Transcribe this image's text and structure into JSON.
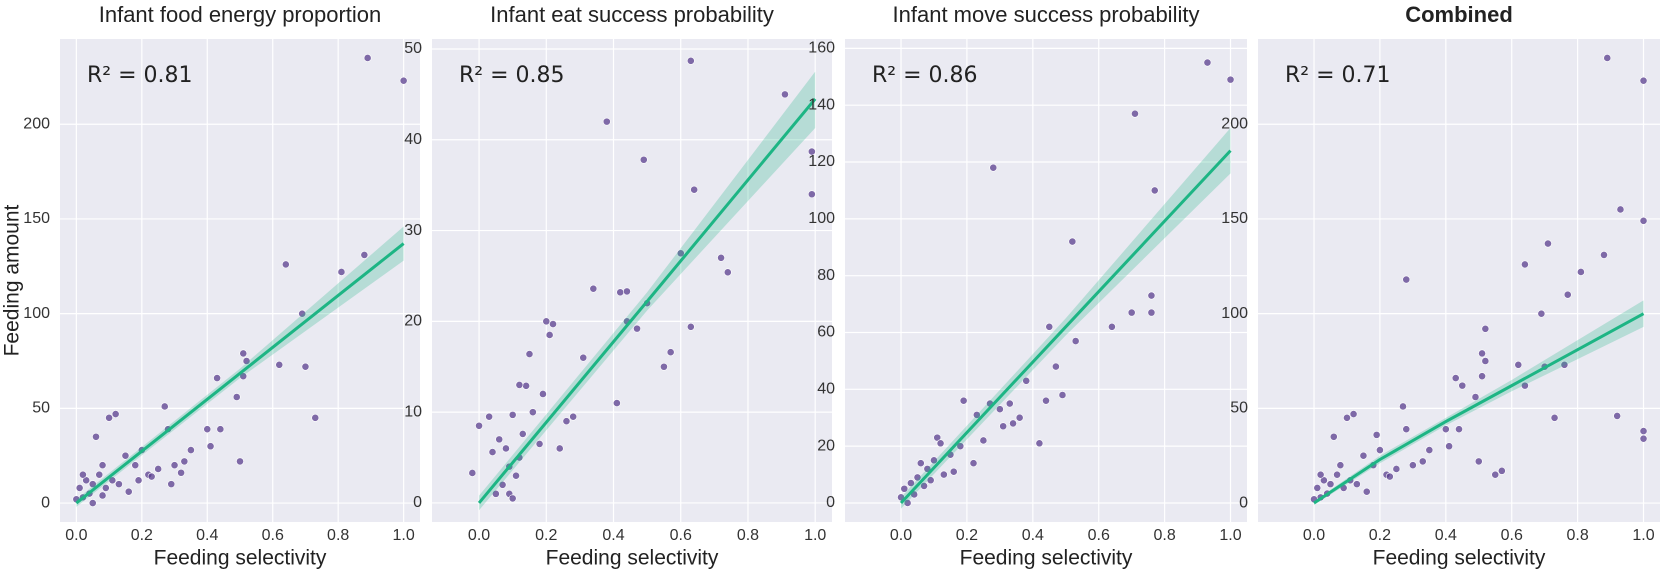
{
  "chart_data": [
    {
      "type": "scatter",
      "title": "Infant food energy proportion",
      "xlabel": "Feeding selectivity",
      "ylabel": "Feeding amount",
      "annotation": "R² = 0.81",
      "xlim": [
        -0.05,
        1.05
      ],
      "ylim": [
        -10,
        245
      ],
      "xticks": [
        {
          "value": 0,
          "label": "0.0"
        },
        0.2,
        0.4,
        0.6,
        0.8,
        {
          "value": 1,
          "label": "1.0"
        }
      ],
      "yticks": [
        0,
        50,
        100,
        150,
        200
      ],
      "grid": true,
      "points": {
        "color": "#5a3e8e",
        "x": [
          0.89,
          1.0,
          0.64,
          0.88,
          0.81,
          0.69,
          0.7,
          0.62,
          0.73,
          0.52,
          0.51,
          0.51,
          0.5,
          0.49,
          0.44,
          0.43,
          0.41,
          0.4,
          0.35,
          0.33,
          0.3,
          0.28,
          0.27,
          0.25,
          0.22,
          0.2,
          0.18,
          0.15,
          0.12,
          0.1,
          0.08,
          0.06,
          0.05,
          0.04,
          0.03,
          0.02,
          0.01,
          0.0,
          0.07,
          0.09,
          0.11,
          0.13,
          0.16,
          0.19,
          0.23,
          0.29,
          0.32,
          0.02,
          0.05,
          0.08
        ],
        "values": [
          235,
          223,
          126,
          131,
          122,
          100,
          72,
          73,
          45,
          75,
          79,
          67,
          22,
          56,
          39,
          66,
          30,
          39,
          28,
          22,
          20,
          39,
          51,
          18,
          15,
          28,
          20,
          25,
          47,
          45,
          20,
          35,
          10,
          5,
          12,
          3,
          8,
          2,
          15,
          8,
          12,
          10,
          6,
          12,
          14,
          10,
          16,
          15,
          0,
          4
        ]
      },
      "fit": {
        "color": "#1db584",
        "x": [
          0,
          0.5,
          1
        ],
        "values": [
          0,
          68.5,
          137
        ],
        "lower": [
          -2,
          66,
          128
        ],
        "upper": [
          2,
          71,
          146
        ]
      }
    },
    {
      "type": "scatter",
      "title": "Infant eat success probability",
      "xlabel": "Feeding selectivity",
      "annotation": "R² = 0.85",
      "xlim": [
        -0.14,
        1.05
      ],
      "ylim": [
        -2.1,
        51.1
      ],
      "xticks": [
        {
          "value": 0,
          "label": "0.0"
        },
        0.2,
        0.4,
        0.6,
        0.8,
        {
          "value": 1,
          "label": "1.0"
        }
      ],
      "yticks": [
        0,
        10,
        20,
        30,
        40,
        50
      ],
      "grid": true,
      "points": {
        "color": "#5a3e8e",
        "x": [
          0.63,
          0.91,
          0.38,
          0.49,
          0.99,
          0.99,
          0.64,
          0.6,
          0.72,
          0.74,
          0.34,
          0.42,
          0.44,
          0.5,
          0.47,
          0.44,
          0.63,
          0.57,
          0.55,
          0.41,
          0.31,
          0.28,
          0.2,
          0.22,
          0.21,
          0.15,
          0.14,
          0.12,
          0.19,
          0.16,
          0.1,
          0.03,
          0.0,
          0.06,
          0.08,
          0.09,
          0.11,
          0.07,
          -0.02,
          0.05,
          0.12,
          0.13,
          0.24,
          0.26,
          0.18,
          0.09,
          0.1,
          0.04
        ],
        "values": [
          48.7,
          45,
          42,
          37.8,
          38.7,
          34,
          34.5,
          27.5,
          27,
          25.4,
          23.6,
          23.2,
          23.3,
          22,
          19.2,
          20,
          19.4,
          16.6,
          15,
          11,
          16,
          9.5,
          20,
          19.7,
          18.5,
          16.4,
          12.9,
          13,
          12,
          10,
          9.7,
          9.5,
          8.5,
          7,
          6,
          4,
          3,
          2,
          3.3,
          1,
          5,
          7.6,
          6,
          9,
          6.5,
          1,
          0.5,
          5.6
        ]
      },
      "fit": {
        "color": "#1db584",
        "x": [
          0,
          0.5,
          1
        ],
        "values": [
          0,
          22.2,
          44.5
        ],
        "lower": [
          -0.8,
          21.2,
          41.3
        ],
        "upper": [
          0.8,
          23.2,
          47.5
        ]
      }
    },
    {
      "type": "scatter",
      "title": "Infant move success probability",
      "xlabel": "Feeding selectivity",
      "annotation": "R² = 0.86",
      "xlim": [
        -0.17,
        1.05
      ],
      "ylim": [
        -6.7,
        163.3
      ],
      "xticks": [
        {
          "value": 0,
          "label": "0.0"
        },
        0.2,
        0.4,
        0.6,
        0.8,
        {
          "value": 1,
          "label": "1.0"
        }
      ],
      "yticks": [
        0,
        20,
        40,
        60,
        80,
        100,
        120,
        140,
        160
      ],
      "grid": true,
      "points": {
        "color": "#5a3e8e",
        "x": [
          0.93,
          1.0,
          0.71,
          0.28,
          0.77,
          0.52,
          0.76,
          0.76,
          0.7,
          0.64,
          0.45,
          0.53,
          0.47,
          0.38,
          0.49,
          0.44,
          0.42,
          0.33,
          0.36,
          0.34,
          0.3,
          0.31,
          0.27,
          0.19,
          0.23,
          0.25,
          0.18,
          0.22,
          0.11,
          0.12,
          0.15,
          0.1,
          0.08,
          0.06,
          0.05,
          0.03,
          0.01,
          0.0,
          0.02,
          0.04,
          0.07,
          0.09,
          0.13,
          0.16
        ],
        "values": [
          155,
          149,
          137,
          118,
          110,
          92,
          73,
          67,
          67,
          62,
          62,
          57,
          48,
          43,
          38,
          36,
          21,
          35,
          30,
          28,
          33,
          27,
          35,
          36,
          31,
          22,
          20,
          14,
          23,
          21,
          17,
          15,
          12,
          14,
          9,
          7,
          5,
          2,
          0,
          3,
          6,
          8,
          10,
          11
        ]
      },
      "fit": {
        "color": "#1db584",
        "x": [
          0,
          0.5,
          1
        ],
        "values": [
          0,
          62,
          124
        ],
        "lower": [
          -2,
          59,
          116
        ],
        "upper": [
          2,
          65,
          132
        ]
      }
    },
    {
      "type": "scatter",
      "title": "Combined",
      "title_bold": true,
      "xlabel": "Feeding selectivity",
      "annotation": "R² = 0.71",
      "xlim": [
        -0.17,
        1.05
      ],
      "ylim": [
        -10,
        245
      ],
      "xticks": [
        {
          "value": 0,
          "label": "0.0"
        },
        0.2,
        0.4,
        0.6,
        0.8,
        {
          "value": 1,
          "label": "1.0"
        }
      ],
      "yticks": [
        0,
        50,
        100,
        150,
        200
      ],
      "grid": true,
      "points": {
        "color": "#5a3e8e",
        "x": [
          0.89,
          1.0,
          0.93,
          1.0,
          0.71,
          0.64,
          0.88,
          0.81,
          0.28,
          0.77,
          0.69,
          0.52,
          0.7,
          0.62,
          0.76,
          0.73,
          0.92,
          1.0,
          1.0,
          0.52,
          0.51,
          0.51,
          0.5,
          0.49,
          0.45,
          0.64,
          0.44,
          0.43,
          0.41,
          0.4,
          0.57,
          0.55,
          0.35,
          0.33,
          0.3,
          0.28,
          0.27,
          0.25,
          0.22,
          0.2,
          0.19,
          0.18,
          0.15,
          0.12,
          0.1,
          0.08,
          0.06,
          0.05,
          0.04,
          0.03,
          0.02,
          0.01,
          0.0,
          0.07,
          0.09,
          0.11,
          0.13,
          0.16,
          0.23,
          0.02
        ],
        "values": [
          235,
          223,
          155,
          149,
          137,
          126,
          131,
          122,
          118,
          110,
          100,
          92,
          72,
          73,
          73,
          45,
          46,
          38,
          34,
          75,
          79,
          67,
          22,
          56,
          62,
          62,
          39,
          66,
          30,
          39,
          17,
          15,
          28,
          22,
          20,
          39,
          51,
          18,
          15,
          28,
          36,
          20,
          25,
          47,
          45,
          20,
          35,
          10,
          5,
          12,
          3,
          8,
          2,
          15,
          8,
          12,
          10,
          6,
          14,
          15
        ]
      },
      "fit": {
        "color": "#1db584",
        "x": [
          0,
          0.2,
          0.4,
          0.6,
          0.8,
          1
        ],
        "values": [
          0,
          23,
          43,
          62,
          81,
          100
        ],
        "lower": [
          -1,
          21,
          41,
          59,
          76,
          93
        ],
        "upper": [
          1,
          25,
          45,
          65,
          86,
          107
        ]
      }
    }
  ]
}
